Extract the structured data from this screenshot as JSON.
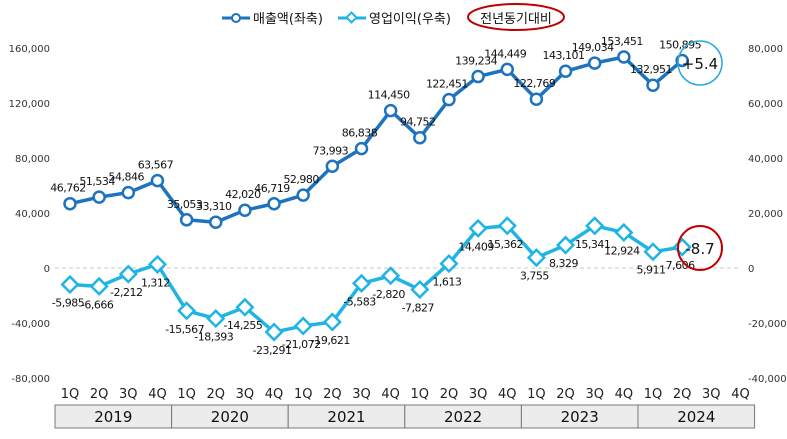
{
  "chart_data": {
    "type": "line",
    "title": "",
    "legend": {
      "position": "top-center",
      "items": [
        "매출액(좌축)",
        "영업이익(우축)",
        "전년동기대비"
      ]
    },
    "years": [
      "2019",
      "2020",
      "2021",
      "2022",
      "2023",
      "2024"
    ],
    "quarters": [
      "1Q",
      "2Q",
      "3Q",
      "4Q"
    ],
    "left_axis": {
      "range": [
        -80000,
        160000
      ],
      "ticks": [
        "160,000",
        "120,000",
        "80,000",
        "40,000",
        "0",
        "-40,000",
        "-80,000"
      ],
      "values": [
        160000,
        120000,
        80000,
        40000,
        0,
        -40000,
        -80000
      ]
    },
    "right_axis": {
      "range": [
        -40000,
        80000
      ],
      "ticks": [
        "80,000",
        "60,000",
        "40,000",
        "20,000",
        "0",
        "-20,000",
        "-40,000"
      ],
      "values": [
        80000,
        60000,
        40000,
        20000,
        0,
        -20000,
        -40000
      ]
    },
    "series": [
      {
        "name": "매출액(좌축)",
        "axis": "left",
        "color": "#1e73be",
        "values": [
          46762,
          51534,
          54846,
          63567,
          35053,
          33310,
          42020,
          46719,
          52980,
          73993,
          86838,
          114450,
          94752,
          122451,
          139234,
          144449,
          122769,
          143101,
          149034,
          153451,
          132951,
          150895
        ],
        "labels": [
          "46,762",
          "51,534",
          "54,846",
          "63,567",
          "35,053",
          "33,310",
          "42,020",
          "46,719",
          "52,980",
          "73,993",
          "86,838",
          "114,450",
          "94,752",
          "122,451",
          "139,234",
          "144,449",
          "122,769",
          "143,101",
          "149,034",
          "153,451",
          "132,951",
          "150,895"
        ]
      },
      {
        "name": "영업이익(우축)",
        "axis": "right",
        "color": "#1fb4e4",
        "values": [
          -5985,
          -6666,
          -2212,
          1312,
          -15567,
          -18393,
          -14255,
          -23291,
          -21072,
          -19621,
          -5583,
          -2820,
          -7827,
          1613,
          14409,
          15362,
          3755,
          8329,
          15341,
          12924,
          5911,
          7606
        ],
        "labels": [
          "-5,985",
          "-6,666",
          "-2,212",
          "1,312",
          "-15,567",
          "-18,393",
          "-14,255",
          "-23,291",
          "-21,072",
          "-19,621",
          "-5,583",
          "-2,820",
          "-7,827",
          "1,613",
          "14,409",
          "15,362",
          "3,755",
          "8,329",
          "15,341",
          "12,924",
          "5,911",
          "7,606"
        ]
      }
    ],
    "annotations": [
      {
        "text": "+5.4",
        "series": "매출액(좌축)",
        "color": "#29a9e0"
      },
      {
        "text": "-8.7",
        "series": "영업이익(우축)",
        "color": "#c00000"
      }
    ]
  }
}
